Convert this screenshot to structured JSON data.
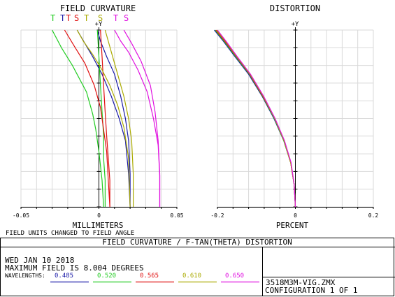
{
  "chart_data": [
    {
      "type": "line",
      "title": "FIELD CURVATURE",
      "xlabel": "MILLIMETERS",
      "ylabel": "+Y",
      "xlim": [
        -0.05,
        0.05
      ],
      "ylim": [
        0,
        8.004
      ],
      "x_ticks": [
        "-0.05",
        "0",
        "0.05"
      ],
      "legend": [
        {
          "label": "T",
          "color": "#22cc22"
        },
        {
          "label": "T",
          "color": "#1a1aa8"
        },
        {
          "label": "T",
          "color": "#e01010"
        },
        {
          "label": "S",
          "color": "#e01010"
        },
        {
          "label": "T",
          "color": "#aaaa00"
        },
        {
          "label": "S",
          "color": "#aaaa00"
        },
        {
          "label": "T",
          "color": "#e010e0"
        },
        {
          "label": "S",
          "color": "#e010e0"
        }
      ],
      "series": [
        {
          "wavelength": "0.485",
          "type": "T",
          "color": "#1a1aa8",
          "x": [
            -0.014,
            -0.009,
            -0.004,
            0.002,
            0.008,
            0.013,
            0.017,
            0.019,
            0.02
          ],
          "y": [
            8.004,
            7.4,
            6.8,
            6.0,
            5.0,
            4.0,
            3.0,
            1.5,
            0
          ]
        },
        {
          "wavelength": "0.485",
          "type": "S",
          "color": "#1a1aa8",
          "x": [
            -0.001,
            0.001,
            0.005,
            0.01,
            0.014,
            0.017,
            0.019,
            0.02,
            0.02
          ],
          "y": [
            8.004,
            7.5,
            6.8,
            6.0,
            5.0,
            4.0,
            3.0,
            1.5,
            0
          ]
        },
        {
          "wavelength": "0.520",
          "type": "T",
          "color": "#22cc22",
          "x": [
            -0.03,
            -0.024,
            -0.017,
            -0.008,
            -0.004,
            -0.002,
            0.0,
            0.002,
            0.003
          ],
          "y": [
            8.004,
            7.2,
            6.4,
            5.2,
            4.2,
            3.5,
            2.5,
            1.2,
            0
          ]
        },
        {
          "wavelength": "0.520",
          "type": "S",
          "color": "#22cc22",
          "x": [
            -0.001,
            0.0,
            0.001,
            0.002,
            0.003,
            0.003,
            0.004,
            0.004
          ],
          "y": [
            8.004,
            6.8,
            5.5,
            4.3,
            3.2,
            2.2,
            1.2,
            0
          ]
        },
        {
          "wavelength": "0.565",
          "type": "T",
          "color": "#e01010",
          "x": [
            -0.022,
            -0.016,
            -0.009,
            -0.003,
            0.001,
            0.003,
            0.005,
            0.006,
            0.007
          ],
          "y": [
            8.004,
            7.3,
            6.5,
            5.5,
            4.5,
            3.5,
            2.5,
            1.2,
            0
          ]
        },
        {
          "wavelength": "0.565",
          "type": "S",
          "color": "#e01010",
          "x": [
            0.001,
            0.002,
            0.003,
            0.004,
            0.005,
            0.006,
            0.007,
            0.007
          ],
          "y": [
            8.004,
            6.8,
            5.5,
            4.3,
            3.2,
            2.2,
            1.2,
            0
          ]
        },
        {
          "wavelength": "0.610",
          "type": "T",
          "color": "#aaaa00",
          "x": [
            0.004,
            0.008,
            0.012,
            0.016,
            0.019,
            0.021,
            0.022,
            0.022
          ],
          "y": [
            8.004,
            7.0,
            6.0,
            5.0,
            4.0,
            3.0,
            1.5,
            0
          ]
        },
        {
          "wavelength": "0.610",
          "type": "S",
          "color": "#aaaa00",
          "x": [
            -0.014,
            -0.01,
            -0.004,
            0.002,
            0.007,
            0.012,
            0.016,
            0.019,
            0.02
          ],
          "y": [
            8.004,
            7.5,
            6.9,
            6.2,
            5.5,
            4.6,
            3.6,
            2.2,
            0
          ]
        },
        {
          "wavelength": "0.650",
          "type": "T",
          "color": "#e010e0",
          "x": [
            0.016,
            0.021,
            0.027,
            0.033,
            0.036,
            0.038,
            0.039,
            0.039
          ],
          "y": [
            8.004,
            7.4,
            6.6,
            5.5,
            4.3,
            3.0,
            1.5,
            0
          ]
        },
        {
          "wavelength": "0.650",
          "type": "S",
          "color": "#e010e0",
          "x": [
            0.01,
            0.014,
            0.019,
            0.025,
            0.031,
            0.035,
            0.038,
            0.039,
            0.039
          ],
          "y": [
            8.004,
            7.5,
            7.0,
            6.2,
            5.2,
            4.0,
            2.8,
            1.4,
            0
          ]
        }
      ]
    },
    {
      "type": "line",
      "title": "DISTORTION",
      "xlabel": "PERCENT",
      "ylabel": "+Y",
      "xlim": [
        -0.2,
        0.2
      ],
      "ylim": [
        0,
        8.004
      ],
      "x_ticks": [
        "-0.2",
        "0",
        "0.2"
      ],
      "series": [
        {
          "wavelength": "0.485",
          "color": "#1a1aa8",
          "x": [
            -0.208,
            -0.185,
            -0.155,
            -0.12,
            -0.085,
            -0.055,
            -0.03,
            -0.012,
            -0.003,
            0.0
          ],
          "y": [
            8.004,
            7.5,
            6.8,
            6.0,
            5.0,
            4.0,
            3.0,
            2.0,
            1.0,
            0
          ]
        },
        {
          "wavelength": "0.520",
          "color": "#22cc22",
          "x": [
            -0.206,
            -0.183,
            -0.153,
            -0.118,
            -0.084,
            -0.054,
            -0.03,
            -0.012,
            -0.003,
            0.0
          ],
          "y": [
            8.004,
            7.5,
            6.8,
            6.0,
            5.0,
            4.0,
            3.0,
            2.0,
            1.0,
            0
          ]
        },
        {
          "wavelength": "0.565",
          "color": "#e01010",
          "x": [
            -0.204,
            -0.181,
            -0.151,
            -0.117,
            -0.083,
            -0.053,
            -0.029,
            -0.012,
            -0.003,
            0.0
          ],
          "y": [
            8.004,
            7.5,
            6.8,
            6.0,
            5.0,
            4.0,
            3.0,
            2.0,
            1.0,
            0
          ]
        },
        {
          "wavelength": "0.610",
          "color": "#aaaa00",
          "x": [
            -0.202,
            -0.179,
            -0.15,
            -0.116,
            -0.082,
            -0.053,
            -0.029,
            -0.012,
            -0.003,
            0.0
          ],
          "y": [
            8.004,
            7.5,
            6.8,
            6.0,
            5.0,
            4.0,
            3.0,
            2.0,
            1.0,
            0
          ]
        },
        {
          "wavelength": "0.650",
          "color": "#e010e0",
          "x": [
            -0.2,
            -0.178,
            -0.149,
            -0.115,
            -0.081,
            -0.052,
            -0.028,
            -0.011,
            -0.003,
            0.0
          ],
          "y": [
            8.004,
            7.5,
            6.8,
            6.0,
            5.0,
            4.0,
            3.0,
            2.0,
            1.0,
            0
          ]
        }
      ]
    }
  ],
  "note": "FIELD UNITS CHANGED TO FIELD ANGLE",
  "footer": {
    "banner": "FIELD CURVATURE / F-TAN(THETA) DISTORTION",
    "date": "WED JAN 10 2018",
    "max_field": "MAXIMUM FIELD IS 8.004 DEGREES",
    "wavelengths_label": "WAVELENGTHS:",
    "wavelengths": [
      {
        "value": "0.485",
        "color": "#1a1aa8"
      },
      {
        "value": "0.520",
        "color": "#22cc22"
      },
      {
        "value": "0.565",
        "color": "#e01010"
      },
      {
        "value": "0.610",
        "color": "#aaaa00"
      },
      {
        "value": "0.650",
        "color": "#e010e0"
      }
    ],
    "filename": "3518M3M-VIG.ZMX",
    "configuration": "CONFIGURATION 1 OF 1"
  }
}
